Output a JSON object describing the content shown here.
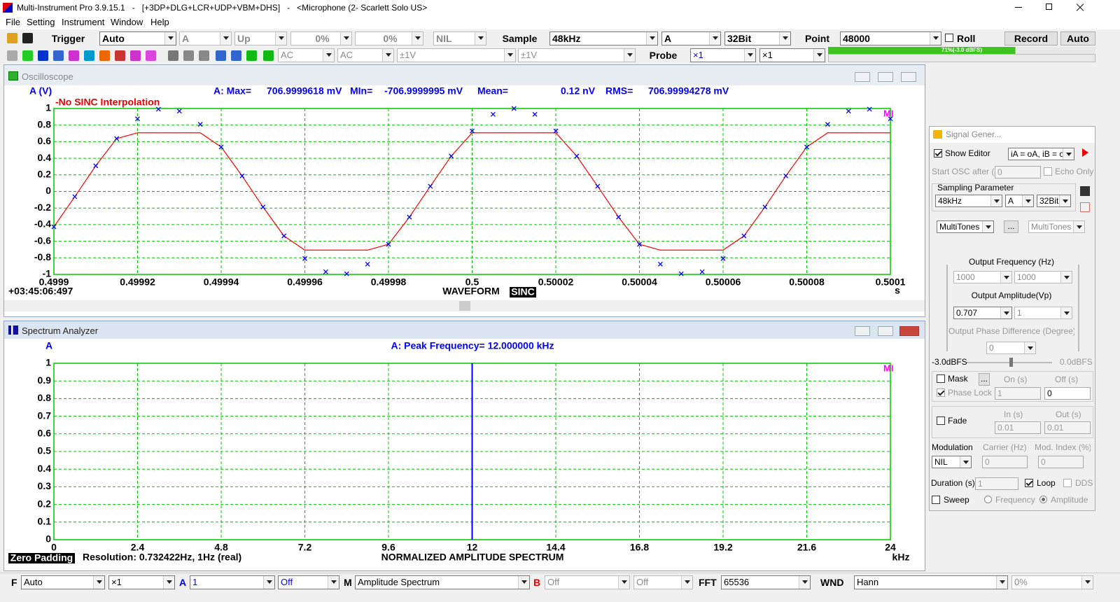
{
  "title_bar": {
    "text": "Multi-Instrument Pro 3.9.15.1   -   [+3DP+DLG+LCR+UDP+VBM+DHS]   -   <Microphone (2- Scarlett Solo US>"
  },
  "menu": [
    "File",
    "Setting",
    "Instrument",
    "Window",
    "Help"
  ],
  "toolbar": {
    "trigger": "Trigger",
    "trigger_mode": "Auto",
    "trigger_channel": "A",
    "trigger_edge": "Up",
    "trigger_level": "0%",
    "trigger_pretrigger": "0%",
    "trigger_nil": "NIL",
    "sample": "Sample",
    "sample_rate": "48kHz",
    "channels": "A",
    "bits": "32Bit",
    "point": "Point",
    "points": "48000",
    "roll": "Roll",
    "record": "Record",
    "auto": "Auto"
  },
  "toolbar2": {
    "coupling_a": "AC",
    "coupling_b": "AC",
    "range_a": "±1V",
    "range_b": "±1V",
    "probe": "Probe",
    "probe_a": "×1",
    "probe_b": "×1",
    "level": "71%(-3.0 dBFS)"
  },
  "windows": {
    "oscilloscope": "Oscilloscope",
    "spectrum": "Spectrum Analyzer"
  },
  "chart_data": [
    {
      "type": "line",
      "y_label": "A (V)",
      "stats": [
        "A: Max=",
        "706.9999618 mV",
        "MIn=",
        "-706.9999995 mV",
        "Mean=",
        "0.12  nV",
        "RMS=",
        "706.99994278 mV"
      ],
      "annotation": "-No SINC Interpolation",
      "watermark": "MI",
      "timestamp": "+03:45:06:497",
      "title": "WAVEFORM",
      "mode": "SINC",
      "x_label": "s",
      "x": [
        0.4999,
        0.499905,
        0.49991,
        0.499915,
        0.49992,
        0.499925,
        0.49993,
        0.499935,
        0.49994,
        0.499945,
        0.49995,
        0.499955,
        0.49996,
        0.499965,
        0.49997,
        0.499975,
        0.49998,
        0.499985,
        0.49999,
        0.499995,
        0.5,
        0.500005,
        0.50001,
        0.500015,
        0.50002,
        0.500025,
        0.50003,
        0.500035,
        0.50004,
        0.500045,
        0.50005,
        0.500055,
        0.50006,
        0.500065,
        0.50007,
        0.500075,
        0.50008,
        0.500085,
        0.50009,
        0.500095,
        0.5001
      ],
      "series": [
        {
          "color": "#ff0000",
          "values": [
            -0.426,
            -0.063,
            0.309,
            0.637,
            0.707,
            0.707,
            0.707,
            0.707,
            0.536,
            0.187,
            -0.187,
            -0.536,
            -0.707,
            -0.707,
            -0.707,
            -0.707,
            -0.637,
            -0.309,
            0.063,
            0.426,
            0.707,
            0.707,
            0.707,
            0.707,
            0.707,
            0.426,
            0.063,
            -0.309,
            -0.637,
            -0.707,
            -0.707,
            -0.707,
            -0.707,
            -0.536,
            -0.187,
            0.187,
            0.536,
            0.707,
            0.707,
            0.707,
            0.707
          ]
        },
        {
          "color": "#0000ff",
          "marker": "x",
          "values": [
            -0.426,
            -0.063,
            0.309,
            0.637,
            0.876,
            0.992,
            0.969,
            0.809,
            0.536,
            0.187,
            -0.187,
            -0.536,
            -0.809,
            -0.969,
            -0.992,
            -0.876,
            -0.637,
            -0.309,
            0.063,
            0.426,
            0.729,
            0.93,
            1,
            0.93,
            0.729,
            0.426,
            0.063,
            -0.309,
            -0.637,
            -0.876,
            -0.992,
            -0.969,
            -0.809,
            -0.536,
            -0.187,
            0.187,
            0.536,
            0.809,
            0.969,
            0.992,
            0.876
          ]
        }
      ],
      "xlim": [
        0.4999,
        0.5001
      ],
      "xticks": [
        0.4999,
        0.49992,
        0.49994,
        0.49996,
        0.49998,
        0.5,
        0.50002,
        0.50004,
        0.50006,
        0.50008,
        0.5001
      ],
      "ylim": [
        -1,
        1
      ],
      "yticks": [
        1,
        0.8,
        0.6,
        0.4,
        0.2,
        0,
        -0.2,
        -0.4,
        -0.6,
        -0.8,
        -1
      ],
      "grid": true,
      "grid_color": "#00c800"
    },
    {
      "type": "stem",
      "y_label": "A",
      "peak": "A: Peak Frequency= 12.000000  kHz",
      "watermark": "MI",
      "padding": "Zero Padding",
      "resolution": "Resolution: 0.732422Hz, 1Hz (real)",
      "title": "NORMALIZED AMPLITUDE SPECTRUM",
      "x_label": "kHz",
      "x": [
        12
      ],
      "series": [
        {
          "color": "#0000ff",
          "values": [
            1
          ]
        }
      ],
      "xlim": [
        0,
        24
      ],
      "xticks": [
        0,
        2.4,
        4.8,
        7.2,
        9.6,
        12,
        14.4,
        16.8,
        19.2,
        21.6,
        24
      ],
      "ylim": [
        0,
        1
      ],
      "yticks": [
        1,
        0.9,
        0.8,
        0.7,
        0.6,
        0.5,
        0.4,
        0.3,
        0.2,
        0.1,
        0
      ],
      "grid": true,
      "grid_color": "#00c800"
    }
  ],
  "status_bar": {
    "f_label": "F",
    "f_mode": "Auto",
    "f_mult": "×1",
    "a_label": "A",
    "a_value": "1",
    "a_off": "Off",
    "m_label": "M",
    "m_value": "Amplitude Spectrum",
    "b_label": "B",
    "b_value": "Off",
    "b_off": "Off",
    "fft_label": "FFT",
    "fft_size": "65536",
    "wnd_label": "WND",
    "wnd_value": "Hann",
    "overlap": "0%"
  },
  "signal_generator": {
    "title": "Signal Gener...",
    "show_editor": "Show Editor",
    "editor_expr": "iA = oA, iB = oB",
    "start_osc": "Start OSC after (s)",
    "start_osc_value": "0",
    "echo_only": "Echo Only",
    "sampling_parameters": "Sampling Parameters",
    "sample_rate": "48kHz",
    "channel": "A",
    "bits": "32Bit",
    "mode_a": "MultiTones",
    "ellipsis": "...",
    "mode_b": "MultiTones",
    "output_frequency": "Output Frequency (Hz)",
    "freq_a": "1000",
    "freq_b": "1000",
    "output_amplitude": "Output Amplitude(Vp)",
    "amp_a": "0.707",
    "amp_b": "1",
    "phase_difference": "Output Phase Difference (Degree)",
    "phase_value": "0",
    "level_left": "-3.0dBFS",
    "level_right": "0.0dBFS",
    "mask": "Mask",
    "mask_button": "...",
    "on_s": "On (s)",
    "off_s": "Off (s)",
    "phase_lock": "Phase Lock",
    "on_value": "1",
    "off_value": "0",
    "in_s": "In (s)",
    "out_s": "Out (s)",
    "fade": "Fade",
    "in_value": "0.01",
    "out_value": "0.01",
    "modulation": "Modulation",
    "carrier": "Carrier (Hz)",
    "mod_index": "Mod. Index (%)",
    "mod_type": "NIL",
    "carrier_value": "0",
    "mod_index_value": "0",
    "duration": "Duration (s)",
    "duration_value": "1",
    "loop": "Loop",
    "dds": "DDS",
    "sweep": "Sweep",
    "frequency": "Frequency",
    "amplitude": "Amplitude"
  }
}
